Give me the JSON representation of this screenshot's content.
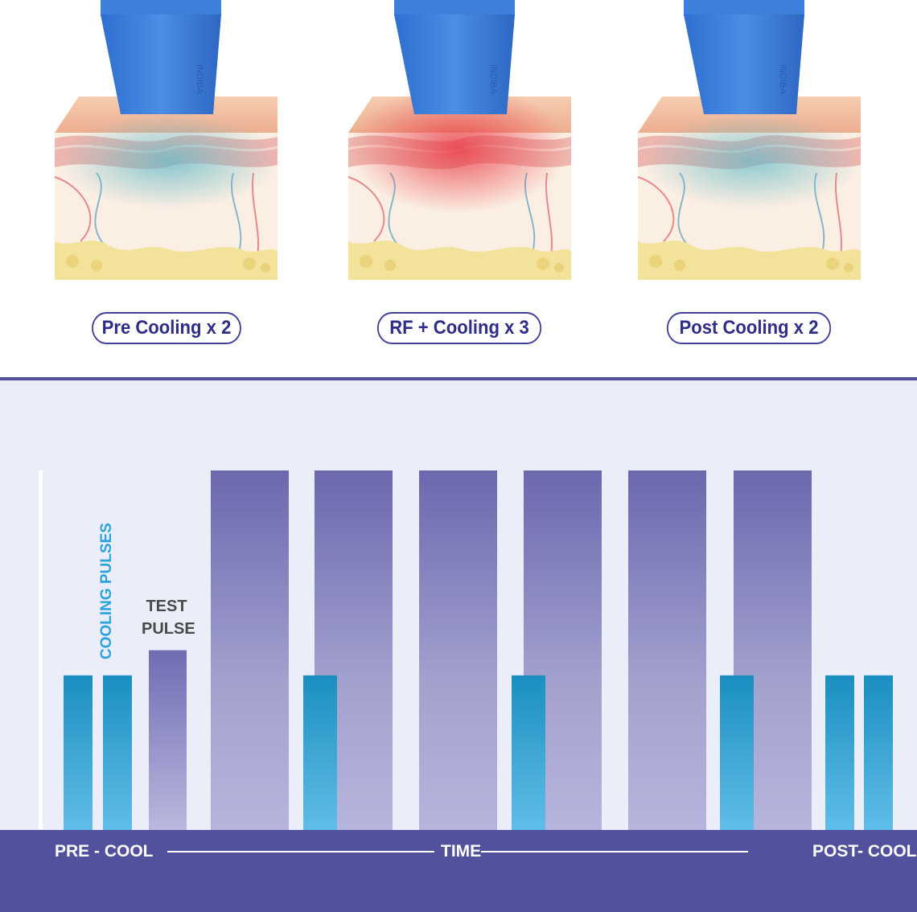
{
  "stages": [
    {
      "label": "Pre Cooling x 2",
      "effect": "cooling",
      "glow_color": "#5fb8c8"
    },
    {
      "label": "RF + Cooling x 3",
      "effect": "heating",
      "glow_color": "#e8333f"
    },
    {
      "label": "Post Cooling x 2",
      "effect": "cooling",
      "glow_color": "#5fb8c8"
    }
  ],
  "device": {
    "brand_text": "INDIBA",
    "color": "#3d7fdc"
  },
  "chart_data": {
    "type": "bar",
    "title": "",
    "xlabel": "TIME",
    "ylabel": "",
    "ylim": [
      0,
      1
    ],
    "phase_labels": {
      "start": "PRE - COOL",
      "end": "POST- COOL"
    },
    "annotations": {
      "cooling": "COOLING PULSES",
      "test": "TEST PULSE"
    },
    "series": [
      {
        "name": "COOLING PULSES",
        "color": "#1e97c4",
        "pulses": [
          {
            "order": 1,
            "value": 0.43
          },
          {
            "order": 2,
            "value": 0.43
          },
          {
            "order": 5,
            "value": 0.43
          },
          {
            "order": 7,
            "value": 0.43
          },
          {
            "order": 10,
            "value": 0.43
          },
          {
            "order": 12,
            "value": 0.43
          },
          {
            "order": 13,
            "value": 0.43
          }
        ]
      },
      {
        "name": "TEST PULSE",
        "color": "#7470b4",
        "pulses": [
          {
            "order": 3,
            "value": 0.5
          }
        ]
      },
      {
        "name": "",
        "color": "#6b68ae",
        "pulses": [
          {
            "order": 4,
            "value": 1.0
          },
          {
            "order": 6,
            "value": 1.0
          },
          {
            "order": 8,
            "value": 1.0
          },
          {
            "order": 9,
            "value": 1.0
          },
          {
            "order": 11,
            "value": 1.0
          }
        ]
      }
    ]
  }
}
